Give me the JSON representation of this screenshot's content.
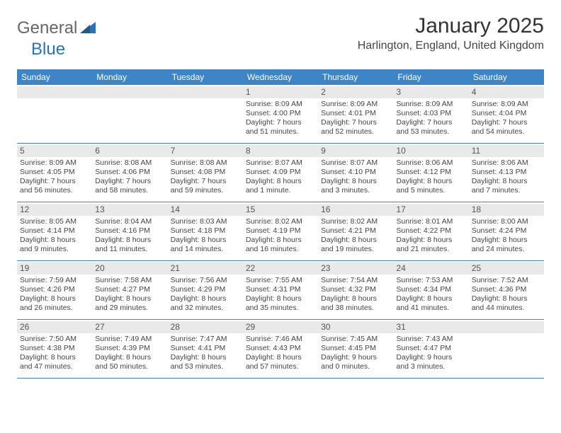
{
  "logo": {
    "text_general": "General",
    "text_blue": "Blue"
  },
  "title": "January 2025",
  "location": "Harlington, England, United Kingdom",
  "colors": {
    "header_bg": "#3d85c6",
    "header_text": "#ffffff",
    "daynum_bg": "#e9e9e9",
    "border": "#3d85c6",
    "body_text": "#444444"
  },
  "day_headers": [
    "Sunday",
    "Monday",
    "Tuesday",
    "Wednesday",
    "Thursday",
    "Friday",
    "Saturday"
  ],
  "weeks": [
    [
      {
        "blank": true
      },
      {
        "blank": true
      },
      {
        "blank": true
      },
      {
        "n": "1",
        "sunrise": "Sunrise: 8:09 AM",
        "sunset": "Sunset: 4:00 PM",
        "d1": "Daylight: 7 hours",
        "d2": "and 51 minutes."
      },
      {
        "n": "2",
        "sunrise": "Sunrise: 8:09 AM",
        "sunset": "Sunset: 4:01 PM",
        "d1": "Daylight: 7 hours",
        "d2": "and 52 minutes."
      },
      {
        "n": "3",
        "sunrise": "Sunrise: 8:09 AM",
        "sunset": "Sunset: 4:03 PM",
        "d1": "Daylight: 7 hours",
        "d2": "and 53 minutes."
      },
      {
        "n": "4",
        "sunrise": "Sunrise: 8:09 AM",
        "sunset": "Sunset: 4:04 PM",
        "d1": "Daylight: 7 hours",
        "d2": "and 54 minutes."
      }
    ],
    [
      {
        "n": "5",
        "sunrise": "Sunrise: 8:09 AM",
        "sunset": "Sunset: 4:05 PM",
        "d1": "Daylight: 7 hours",
        "d2": "and 56 minutes."
      },
      {
        "n": "6",
        "sunrise": "Sunrise: 8:08 AM",
        "sunset": "Sunset: 4:06 PM",
        "d1": "Daylight: 7 hours",
        "d2": "and 58 minutes."
      },
      {
        "n": "7",
        "sunrise": "Sunrise: 8:08 AM",
        "sunset": "Sunset: 4:08 PM",
        "d1": "Daylight: 7 hours",
        "d2": "and 59 minutes."
      },
      {
        "n": "8",
        "sunrise": "Sunrise: 8:07 AM",
        "sunset": "Sunset: 4:09 PM",
        "d1": "Daylight: 8 hours",
        "d2": "and 1 minute."
      },
      {
        "n": "9",
        "sunrise": "Sunrise: 8:07 AM",
        "sunset": "Sunset: 4:10 PM",
        "d1": "Daylight: 8 hours",
        "d2": "and 3 minutes."
      },
      {
        "n": "10",
        "sunrise": "Sunrise: 8:06 AM",
        "sunset": "Sunset: 4:12 PM",
        "d1": "Daylight: 8 hours",
        "d2": "and 5 minutes."
      },
      {
        "n": "11",
        "sunrise": "Sunrise: 8:06 AM",
        "sunset": "Sunset: 4:13 PM",
        "d1": "Daylight: 8 hours",
        "d2": "and 7 minutes."
      }
    ],
    [
      {
        "n": "12",
        "sunrise": "Sunrise: 8:05 AM",
        "sunset": "Sunset: 4:14 PM",
        "d1": "Daylight: 8 hours",
        "d2": "and 9 minutes."
      },
      {
        "n": "13",
        "sunrise": "Sunrise: 8:04 AM",
        "sunset": "Sunset: 4:16 PM",
        "d1": "Daylight: 8 hours",
        "d2": "and 11 minutes."
      },
      {
        "n": "14",
        "sunrise": "Sunrise: 8:03 AM",
        "sunset": "Sunset: 4:18 PM",
        "d1": "Daylight: 8 hours",
        "d2": "and 14 minutes."
      },
      {
        "n": "15",
        "sunrise": "Sunrise: 8:02 AM",
        "sunset": "Sunset: 4:19 PM",
        "d1": "Daylight: 8 hours",
        "d2": "and 16 minutes."
      },
      {
        "n": "16",
        "sunrise": "Sunrise: 8:02 AM",
        "sunset": "Sunset: 4:21 PM",
        "d1": "Daylight: 8 hours",
        "d2": "and 19 minutes."
      },
      {
        "n": "17",
        "sunrise": "Sunrise: 8:01 AM",
        "sunset": "Sunset: 4:22 PM",
        "d1": "Daylight: 8 hours",
        "d2": "and 21 minutes."
      },
      {
        "n": "18",
        "sunrise": "Sunrise: 8:00 AM",
        "sunset": "Sunset: 4:24 PM",
        "d1": "Daylight: 8 hours",
        "d2": "and 24 minutes."
      }
    ],
    [
      {
        "n": "19",
        "sunrise": "Sunrise: 7:59 AM",
        "sunset": "Sunset: 4:26 PM",
        "d1": "Daylight: 8 hours",
        "d2": "and 26 minutes."
      },
      {
        "n": "20",
        "sunrise": "Sunrise: 7:58 AM",
        "sunset": "Sunset: 4:27 PM",
        "d1": "Daylight: 8 hours",
        "d2": "and 29 minutes."
      },
      {
        "n": "21",
        "sunrise": "Sunrise: 7:56 AM",
        "sunset": "Sunset: 4:29 PM",
        "d1": "Daylight: 8 hours",
        "d2": "and 32 minutes."
      },
      {
        "n": "22",
        "sunrise": "Sunrise: 7:55 AM",
        "sunset": "Sunset: 4:31 PM",
        "d1": "Daylight: 8 hours",
        "d2": "and 35 minutes."
      },
      {
        "n": "23",
        "sunrise": "Sunrise: 7:54 AM",
        "sunset": "Sunset: 4:32 PM",
        "d1": "Daylight: 8 hours",
        "d2": "and 38 minutes."
      },
      {
        "n": "24",
        "sunrise": "Sunrise: 7:53 AM",
        "sunset": "Sunset: 4:34 PM",
        "d1": "Daylight: 8 hours",
        "d2": "and 41 minutes."
      },
      {
        "n": "25",
        "sunrise": "Sunrise: 7:52 AM",
        "sunset": "Sunset: 4:36 PM",
        "d1": "Daylight: 8 hours",
        "d2": "and 44 minutes."
      }
    ],
    [
      {
        "n": "26",
        "sunrise": "Sunrise: 7:50 AM",
        "sunset": "Sunset: 4:38 PM",
        "d1": "Daylight: 8 hours",
        "d2": "and 47 minutes."
      },
      {
        "n": "27",
        "sunrise": "Sunrise: 7:49 AM",
        "sunset": "Sunset: 4:39 PM",
        "d1": "Daylight: 8 hours",
        "d2": "and 50 minutes."
      },
      {
        "n": "28",
        "sunrise": "Sunrise: 7:47 AM",
        "sunset": "Sunset: 4:41 PM",
        "d1": "Daylight: 8 hours",
        "d2": "and 53 minutes."
      },
      {
        "n": "29",
        "sunrise": "Sunrise: 7:46 AM",
        "sunset": "Sunset: 4:43 PM",
        "d1": "Daylight: 8 hours",
        "d2": "and 57 minutes."
      },
      {
        "n": "30",
        "sunrise": "Sunrise: 7:45 AM",
        "sunset": "Sunset: 4:45 PM",
        "d1": "Daylight: 9 hours",
        "d2": "and 0 minutes."
      },
      {
        "n": "31",
        "sunrise": "Sunrise: 7:43 AM",
        "sunset": "Sunset: 4:47 PM",
        "d1": "Daylight: 9 hours",
        "d2": "and 3 minutes."
      },
      {
        "blank": true
      }
    ]
  ]
}
